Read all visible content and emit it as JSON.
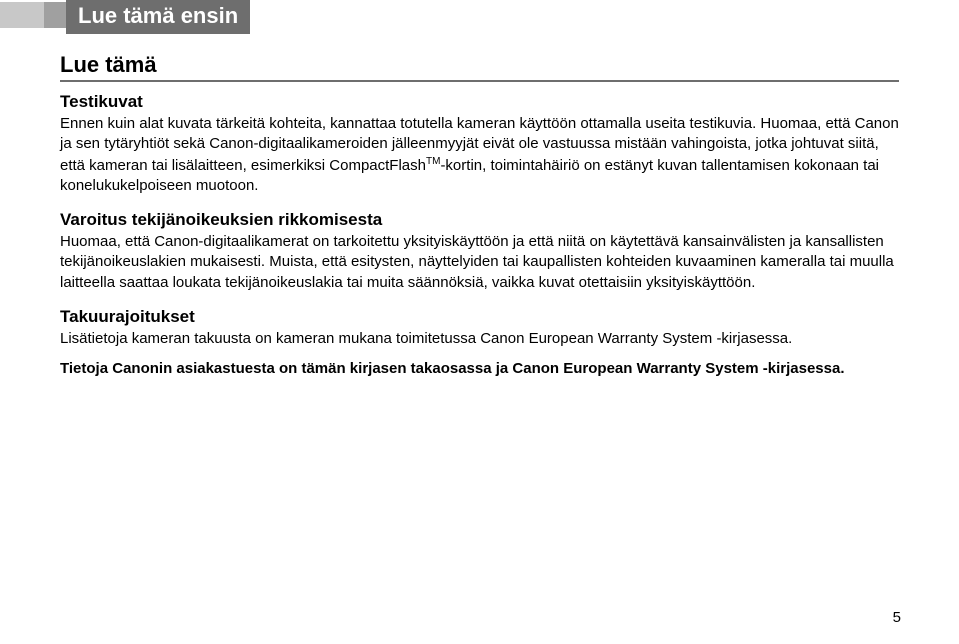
{
  "header": {
    "title": "Lue tämä ensin"
  },
  "section": {
    "title": "Lue tämä"
  },
  "blocks": [
    {
      "heading": "Testikuvat",
      "text": "Ennen kuin alat kuvata tärkeitä kohteita, kannattaa totutella kameran käyttöön ottamalla useita testikuvia. Huomaa, että Canon ja sen tytäryhtiöt sekä Canon-digitaalikameroiden jälleenmyyjät eivät ole vastuussa mistään vahingoista, jotka johtuvat siitä, että kameran tai lisälaitteen, esimerkiksi CompactFlash",
      "sup": "TM",
      "text2": "-kortin, toimintahäiriö on estänyt kuvan tallentamisen kokonaan tai konelukukelpoiseen muotoon."
    },
    {
      "heading": "Varoitus tekijänoikeuksien rikkomisesta",
      "text": "Huomaa, että Canon-digitaalikamerat on tarkoitettu yksityiskäyttöön ja että niitä on käytettävä kansainvälisten ja kansallisten tekijänoikeuslakien mukaisesti. Muista, että esitysten, näyttelyiden tai kaupallisten kohteiden kuvaaminen kameralla tai muulla laitteella saattaa loukata tekijänoikeuslakia tai muita säännöksiä, vaikka kuvat otettaisiin yksityiskäyttöön."
    },
    {
      "heading": "Takuurajoitukset",
      "text": "Lisätietoja kameran takuusta on kameran mukana toimitetussa Canon European Warranty System -kirjasessa."
    }
  ],
  "footer_bold": "Tietoja Canonin asiakastuesta on tämän kirjasen takaosassa ja Canon European Warranty System -kirjasessa.",
  "page_number": "5"
}
